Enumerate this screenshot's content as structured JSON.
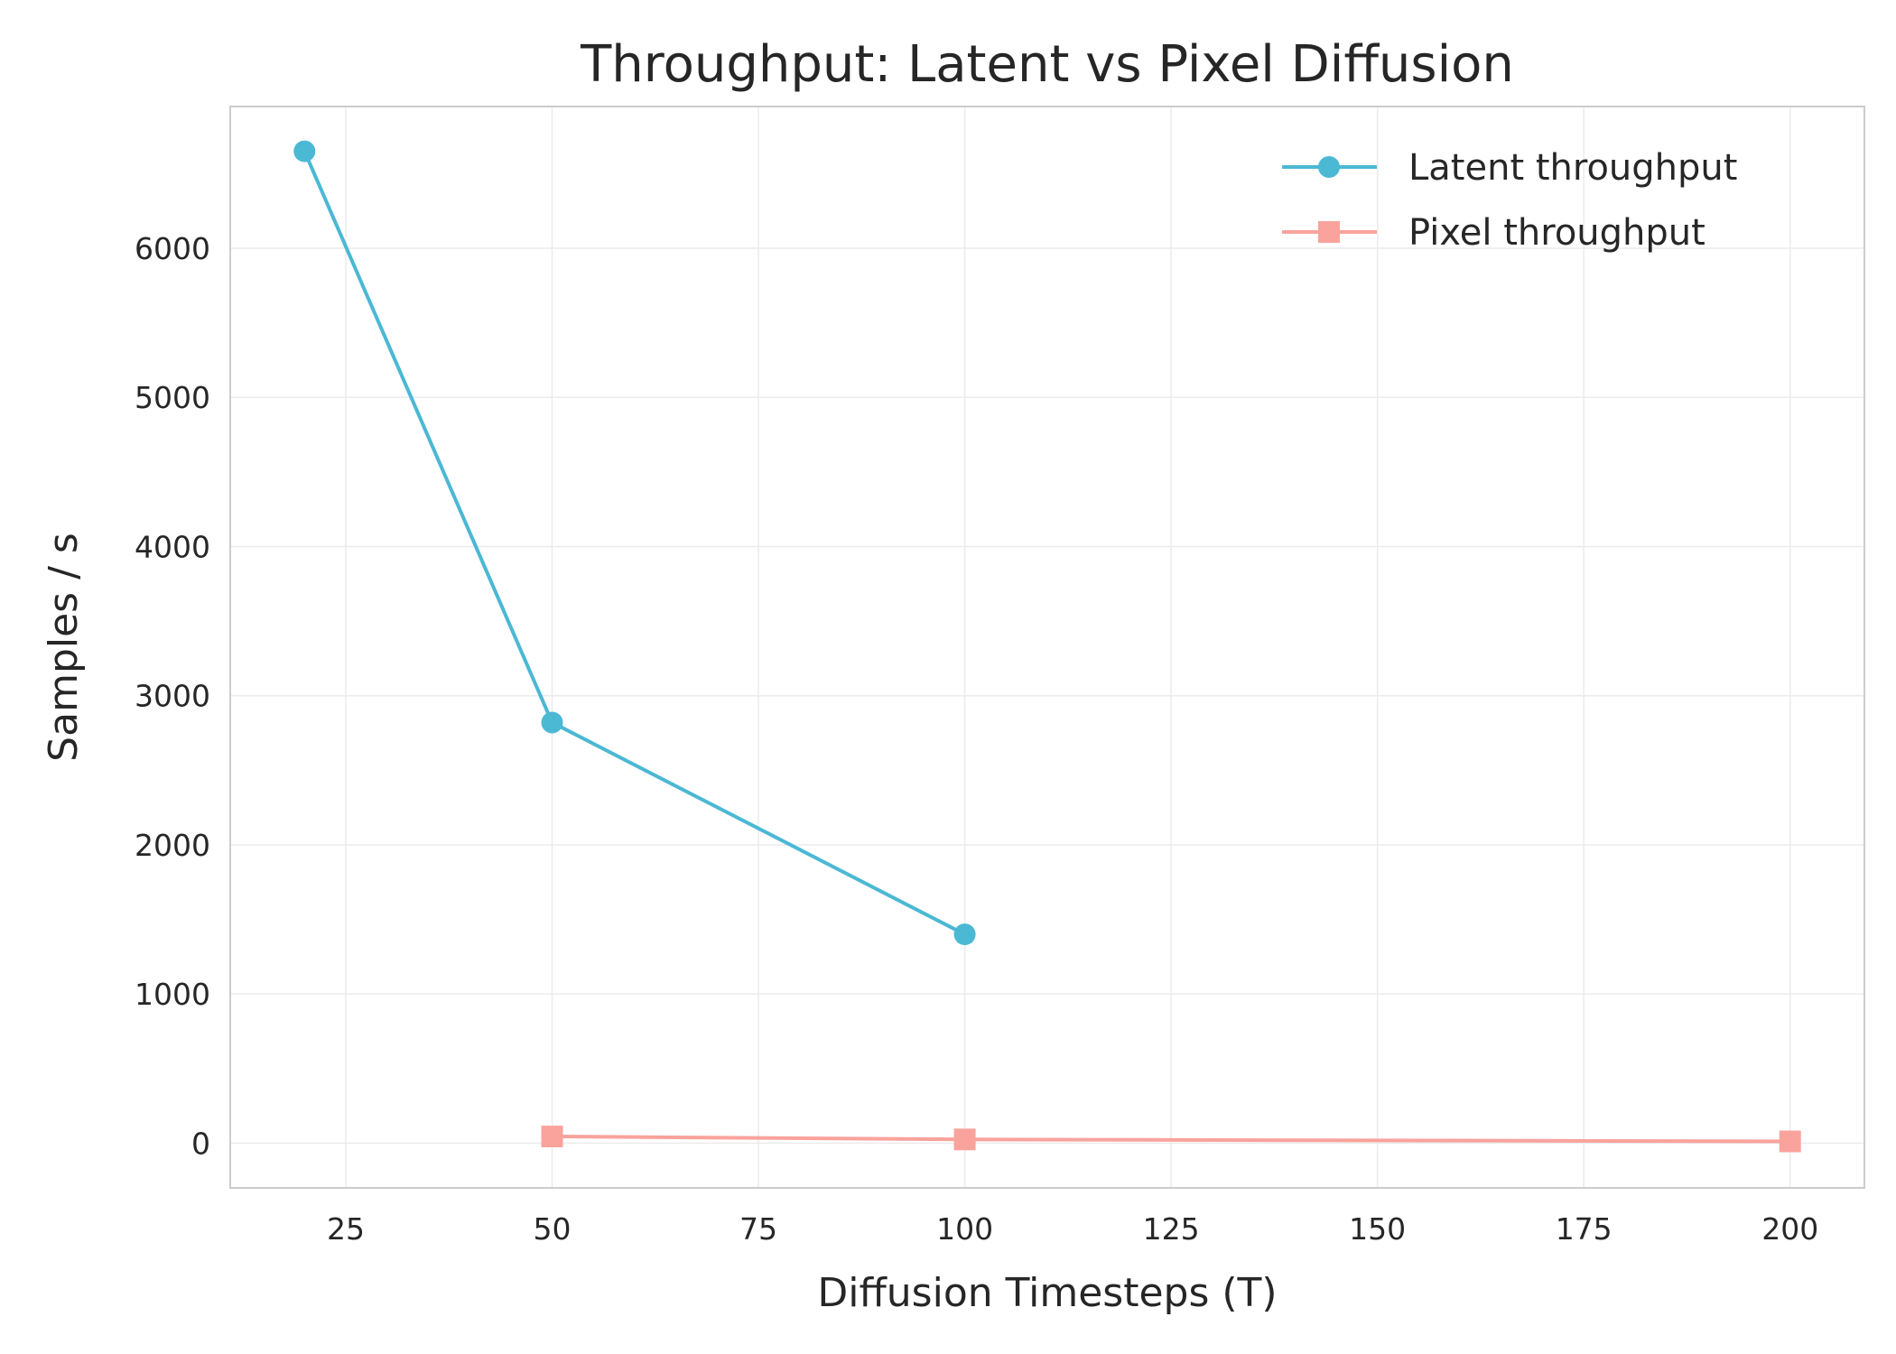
{
  "chart_data": {
    "type": "line",
    "title": "Throughput: Latent vs Pixel Diffusion",
    "xlabel": "Diffusion Timesteps (T)",
    "ylabel": "Samples / s",
    "xlim": [
      11,
      209
    ],
    "ylim": [
      -300,
      6950
    ],
    "xticks": [
      25,
      50,
      75,
      100,
      125,
      150,
      175,
      200
    ],
    "yticks": [
      0,
      1000,
      2000,
      3000,
      4000,
      5000,
      6000
    ],
    "grid": true,
    "legend_position": "top-right",
    "series": [
      {
        "name": "Latent throughput",
        "color": "#4bb8d4",
        "marker": "circle",
        "x": [
          20,
          50,
          100
        ],
        "y": [
          6650,
          2820,
          1400
        ]
      },
      {
        "name": "Pixel throughput",
        "color": "#f9a39c",
        "marker": "square",
        "x": [
          50,
          100,
          200
        ],
        "y": [
          45,
          25,
          12
        ]
      }
    ]
  }
}
